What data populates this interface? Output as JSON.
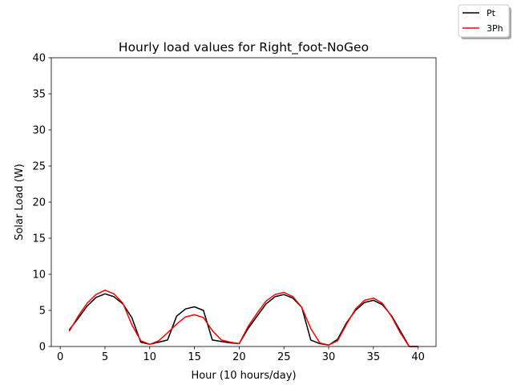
{
  "chart_data": {
    "type": "line",
    "title": "Hourly load values for Right_foot-NoGeo",
    "xlabel": "Hour (10 hours/day)",
    "ylabel": "Solar Load (W)",
    "xlim": [
      -1,
      42
    ],
    "ylim": [
      0,
      40
    ],
    "xticks": [
      0,
      5,
      10,
      15,
      20,
      25,
      30,
      35,
      40
    ],
    "yticks": [
      0,
      5,
      10,
      15,
      20,
      25,
      30,
      35,
      40
    ],
    "grid": false,
    "legend_position": "top-right",
    "x": [
      1,
      2,
      3,
      4,
      5,
      6,
      7,
      8,
      9,
      10,
      11,
      12,
      13,
      14,
      15,
      16,
      17,
      18,
      19,
      20,
      21,
      22,
      23,
      24,
      25,
      26,
      27,
      28,
      29,
      30,
      31,
      32,
      33,
      34,
      35,
      36,
      37,
      38,
      39,
      40
    ],
    "series": [
      {
        "name": "Pt",
        "color": "#000000",
        "values": [
          2.3,
          3.9,
          5.6,
          6.8,
          7.3,
          6.9,
          5.9,
          4.0,
          0.6,
          0.3,
          0.6,
          0.9,
          4.2,
          5.2,
          5.5,
          5.0,
          0.9,
          0.7,
          0.5,
          0.4,
          2.5,
          4.2,
          5.9,
          6.9,
          7.2,
          6.7,
          5.4,
          0.9,
          0.4,
          0.2,
          1.0,
          3.3,
          5.0,
          6.1,
          6.4,
          5.8,
          4.3,
          2.2,
          0.0,
          0.0
        ]
      },
      {
        "name": "3Ph",
        "color": "#ff0000",
        "values": [
          2.1,
          4.2,
          6.0,
          7.2,
          7.8,
          7.3,
          6.0,
          3.0,
          0.8,
          0.3,
          0.8,
          1.9,
          3.1,
          4.1,
          4.4,
          4.0,
          2.2,
          0.9,
          0.6,
          0.4,
          2.8,
          4.6,
          6.3,
          7.2,
          7.5,
          6.9,
          5.4,
          2.5,
          0.5,
          0.2,
          0.8,
          3.1,
          5.2,
          6.4,
          6.7,
          6.0,
          4.2,
          1.9,
          0.0,
          0.0
        ]
      }
    ]
  }
}
